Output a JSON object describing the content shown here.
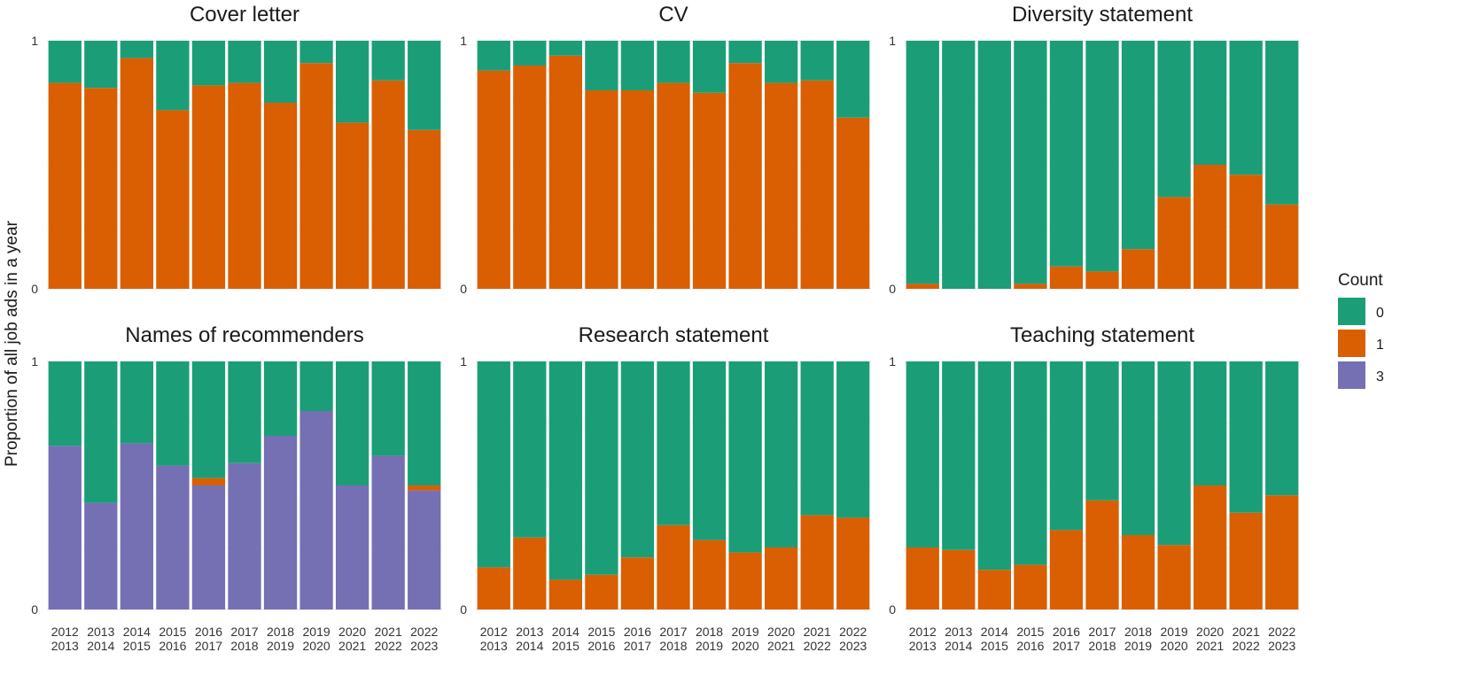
{
  "chart_data": {
    "type": "bar",
    "stacked": true,
    "normalized": true,
    "ylabel": "Proportion of all job ads in a year",
    "ylim": [
      0,
      1
    ],
    "yticks": [
      "0",
      "1"
    ],
    "categories": [
      "2012 2013",
      "2013 2014",
      "2014 2015",
      "2015 2016",
      "2016 2017",
      "2017 2018",
      "2018 2019",
      "2019 2020",
      "2020 2021",
      "2021 2022",
      "2022 2023"
    ],
    "category_lines": [
      [
        "2012",
        "2013"
      ],
      [
        "2013",
        "2014"
      ],
      [
        "2014",
        "2015"
      ],
      [
        "2015",
        "2016"
      ],
      [
        "2016",
        "2017"
      ],
      [
        "2017",
        "2018"
      ],
      [
        "2018",
        "2019"
      ],
      [
        "2019",
        "2020"
      ],
      [
        "2020",
        "2021"
      ],
      [
        "2021",
        "2022"
      ],
      [
        "2022",
        "2023"
      ]
    ],
    "legend": {
      "title": "Count",
      "position": "right",
      "entries": [
        {
          "label": "0",
          "color": "#1b9e77"
        },
        {
          "label": "1",
          "color": "#d95f02"
        },
        {
          "label": "3",
          "color": "#7570b3"
        }
      ]
    },
    "facets": [
      {
        "title": "Cover letter",
        "series": [
          {
            "name": "1",
            "values": [
              0.83,
              0.81,
              0.93,
              0.72,
              0.82,
              0.83,
              0.75,
              0.91,
              0.67,
              0.84,
              0.64
            ]
          },
          {
            "name": "0",
            "values": [
              0.17,
              0.19,
              0.07,
              0.28,
              0.18,
              0.17,
              0.25,
              0.09,
              0.33,
              0.16,
              0.36
            ]
          }
        ]
      },
      {
        "title": "CV",
        "series": [
          {
            "name": "1",
            "values": [
              0.88,
              0.9,
              0.94,
              0.8,
              0.8,
              0.83,
              0.79,
              0.91,
              0.83,
              0.84,
              0.69
            ]
          },
          {
            "name": "0",
            "values": [
              0.12,
              0.1,
              0.06,
              0.2,
              0.2,
              0.17,
              0.21,
              0.09,
              0.17,
              0.16,
              0.31
            ]
          }
        ]
      },
      {
        "title": "Diversity statement",
        "series": [
          {
            "name": "1",
            "values": [
              0.02,
              0.0,
              0.0,
              0.02,
              0.09,
              0.07,
              0.16,
              0.37,
              0.5,
              0.46,
              0.34
            ]
          },
          {
            "name": "0",
            "values": [
              0.98,
              1.0,
              1.0,
              0.98,
              0.91,
              0.93,
              0.84,
              0.63,
              0.5,
              0.54,
              0.66
            ]
          }
        ]
      },
      {
        "title": "Names of recommenders",
        "series": [
          {
            "name": "3",
            "values": [
              0.66,
              0.43,
              0.67,
              0.58,
              0.5,
              0.59,
              0.7,
              0.8,
              0.5,
              0.62,
              0.48
            ]
          },
          {
            "name": "1",
            "values": [
              0.0,
              0.0,
              0.0,
              0.0,
              0.03,
              0.0,
              0.0,
              0.0,
              0.0,
              0.0,
              0.02
            ]
          },
          {
            "name": "0",
            "values": [
              0.34,
              0.57,
              0.33,
              0.42,
              0.47,
              0.41,
              0.3,
              0.2,
              0.5,
              0.38,
              0.5
            ]
          }
        ]
      },
      {
        "title": "Research statement",
        "series": [
          {
            "name": "1",
            "values": [
              0.17,
              0.29,
              0.12,
              0.14,
              0.21,
              0.34,
              0.28,
              0.23,
              0.25,
              0.38,
              0.37
            ]
          },
          {
            "name": "0",
            "values": [
              0.83,
              0.71,
              0.88,
              0.86,
              0.79,
              0.66,
              0.72,
              0.77,
              0.75,
              0.62,
              0.63
            ]
          }
        ]
      },
      {
        "title": "Teaching statement",
        "series": [
          {
            "name": "1",
            "values": [
              0.25,
              0.24,
              0.16,
              0.18,
              0.32,
              0.44,
              0.3,
              0.26,
              0.5,
              0.39,
              0.46
            ]
          },
          {
            "name": "0",
            "values": [
              0.75,
              0.76,
              0.84,
              0.82,
              0.68,
              0.56,
              0.7,
              0.74,
              0.5,
              0.61,
              0.54
            ]
          }
        ]
      }
    ]
  }
}
